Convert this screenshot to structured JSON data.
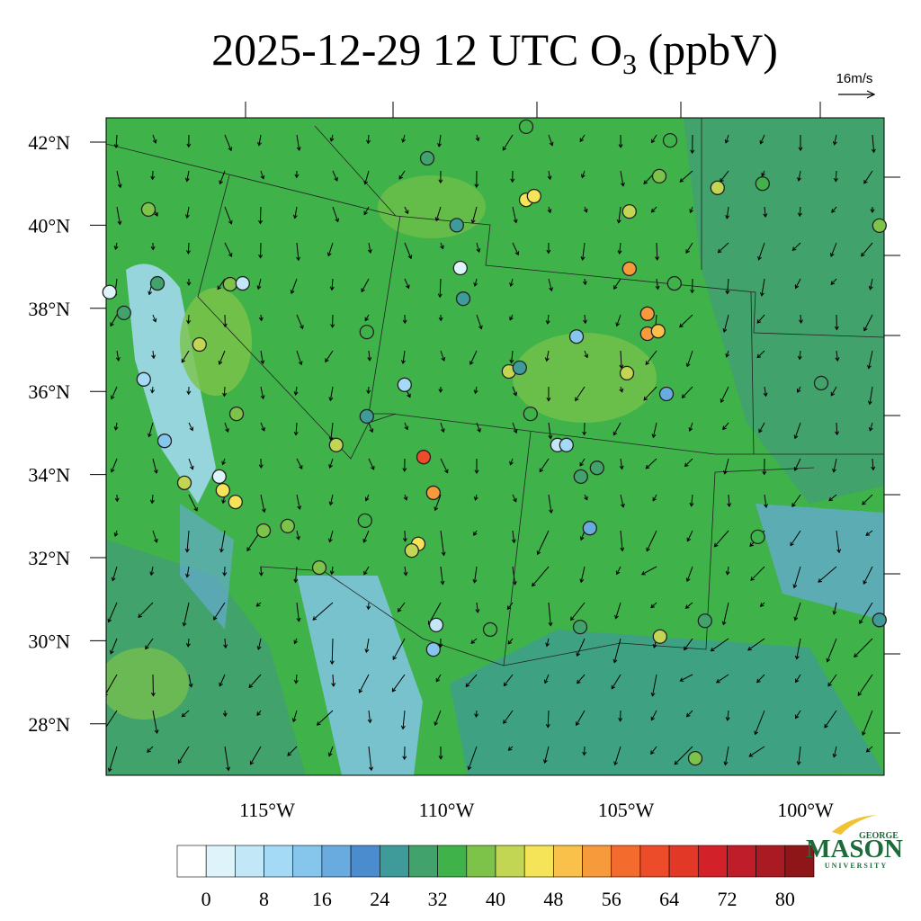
{
  "title": {
    "prefix": "2025-12-29 12 UTC O",
    "subscript": "3",
    "suffix": " (ppbV)"
  },
  "wind_reference": "16m/s",
  "lat_labels": [
    "42°N",
    "40°N",
    "38°N",
    "36°N",
    "34°N",
    "32°N",
    "30°N",
    "28°N"
  ],
  "lon_labels": [
    "115°W",
    "110°W",
    "105°W",
    "100°W"
  ],
  "colorbar": {
    "ticks": [
      0,
      8,
      16,
      24,
      32,
      40,
      48,
      56,
      64,
      72,
      80
    ],
    "colors": [
      "#ffffff",
      "#dff3fb",
      "#c2e8f8",
      "#a4daf5",
      "#86c6ec",
      "#6aabdf",
      "#4b8ccf",
      "#3f9b9a",
      "#41a26b",
      "#3fb24a",
      "#7dc34a",
      "#c2d653",
      "#f5e458",
      "#f9c04a",
      "#f79a3c",
      "#f46b2e",
      "#ec4c2a",
      "#e23828",
      "#d32129",
      "#bf1d2a",
      "#a91a23",
      "#8e1518"
    ]
  },
  "logo": {
    "top": "GEORGE",
    "main": "MASON",
    "bottom": "UNIVERSITY"
  },
  "stations": [
    {
      "lon": -110.65,
      "lat": 34.42,
      "value": 60
    },
    {
      "lon": -110.38,
      "lat": 33.56,
      "value": 54
    },
    {
      "lon": -104.93,
      "lat": 38.95,
      "value": 54
    },
    {
      "lon": -104.43,
      "lat": 37.87,
      "value": 54
    },
    {
      "lon": -104.43,
      "lat": 37.39,
      "value": 52
    },
    {
      "lon": -104.13,
      "lat": 37.45,
      "value": 48
    },
    {
      "lon": -107.8,
      "lat": 40.61,
      "value": 46
    },
    {
      "lon": -107.58,
      "lat": 40.7,
      "value": 46
    },
    {
      "lon": -115.88,
      "lat": 33.34,
      "value": 46
    },
    {
      "lon": -116.23,
      "lat": 33.62,
      "value": 44
    },
    {
      "lon": -117.3,
      "lat": 33.8,
      "value": 42
    },
    {
      "lon": -110.8,
      "lat": 32.33,
      "value": 44
    },
    {
      "lon": -110.98,
      "lat": 32.17,
      "value": 42
    },
    {
      "lon": -116.88,
      "lat": 37.13,
      "value": 40
    },
    {
      "lon": -113.08,
      "lat": 34.71,
      "value": 40
    },
    {
      "lon": -108.28,
      "lat": 36.48,
      "value": 40
    },
    {
      "lon": -102.48,
      "lat": 40.9,
      "value": 40
    },
    {
      "lon": -105.0,
      "lat": 36.44,
      "value": 40
    },
    {
      "lon": -104.08,
      "lat": 30.1,
      "value": 40
    },
    {
      "lon": -118.3,
      "lat": 40.38,
      "value": 38
    },
    {
      "lon": -116.03,
      "lat": 38.58,
      "value": 38
    },
    {
      "lon": -115.85,
      "lat": 35.46,
      "value": 38
    },
    {
      "lon": -107.98,
      "lat": 36.57,
      "value": 24
    },
    {
      "lon": -112.23,
      "lat": 35.4,
      "value": 24
    },
    {
      "lon": -109.73,
      "lat": 40.0,
      "value": 24
    },
    {
      "lon": -109.55,
      "lat": 38.23,
      "value": 24
    },
    {
      "lon": -119.38,
      "lat": 38.39,
      "value": 0
    },
    {
      "lon": -118.43,
      "lat": 36.29,
      "value": 10
    },
    {
      "lon": -117.85,
      "lat": 34.81,
      "value": 12
    },
    {
      "lon": -116.33,
      "lat": 33.95,
      "value": 2
    },
    {
      "lon": -115.68,
      "lat": 38.6,
      "value": 4
    },
    {
      "lon": -110.3,
      "lat": 30.38,
      "value": 4
    },
    {
      "lon": -110.38,
      "lat": 29.79,
      "value": 12
    },
    {
      "lon": -111.18,
      "lat": 36.16,
      "value": 10
    },
    {
      "lon": -106.4,
      "lat": 37.32,
      "value": 12
    },
    {
      "lon": -106.93,
      "lat": 34.71,
      "value": 4
    },
    {
      "lon": -106.68,
      "lat": 34.71,
      "value": 10
    },
    {
      "lon": -106.03,
      "lat": 32.71,
      "value": 16
    },
    {
      "lon": -103.9,
      "lat": 35.94,
      "value": 16
    },
    {
      "lon": -109.63,
      "lat": 38.97,
      "value": 2
    },
    {
      "lon": -107.8,
      "lat": 42.37,
      "value": 34
    },
    {
      "lon": -110.55,
      "lat": 41.61,
      "value": 30
    },
    {
      "lon": -103.8,
      "lat": 42.04,
      "value": 32
    },
    {
      "lon": -101.23,
      "lat": 41.0,
      "value": 34
    },
    {
      "lon": -97.98,
      "lat": 39.99,
      "value": 36
    },
    {
      "lon": -99.6,
      "lat": 36.2,
      "value": 30
    },
    {
      "lon": -101.36,
      "lat": 32.5,
      "value": 32
    },
    {
      "lon": -102.83,
      "lat": 30.48,
      "value": 30
    },
    {
      "lon": -103.1,
      "lat": 27.17,
      "value": 36
    },
    {
      "lon": -97.98,
      "lat": 30.5,
      "value": 26
    },
    {
      "lon": -108.8,
      "lat": 30.27,
      "value": 32
    },
    {
      "lon": -112.28,
      "lat": 32.89,
      "value": 34
    },
    {
      "lon": -112.23,
      "lat": 37.43,
      "value": 34
    },
    {
      "lon": -113.55,
      "lat": 31.76,
      "value": 36
    },
    {
      "lon": -106.28,
      "lat": 33.95,
      "value": 30
    },
    {
      "lon": -105.83,
      "lat": 34.16,
      "value": 28
    },
    {
      "lon": -114.43,
      "lat": 32.76,
      "value": 36
    },
    {
      "lon": -115.1,
      "lat": 32.65,
      "value": 38
    },
    {
      "lon": -118.98,
      "lat": 37.89,
      "value": 30
    },
    {
      "lon": -118.05,
      "lat": 38.6,
      "value": 28
    },
    {
      "lon": -106.3,
      "lat": 30.33,
      "value": 30
    },
    {
      "lon": -107.68,
      "lat": 35.46,
      "value": 34
    },
    {
      "lon": -103.68,
      "lat": 38.6,
      "value": 34
    },
    {
      "lon": -104.93,
      "lat": 40.33,
      "value": 40
    },
    {
      "lon": -104.1,
      "lat": 41.18,
      "value": 36
    }
  ]
}
